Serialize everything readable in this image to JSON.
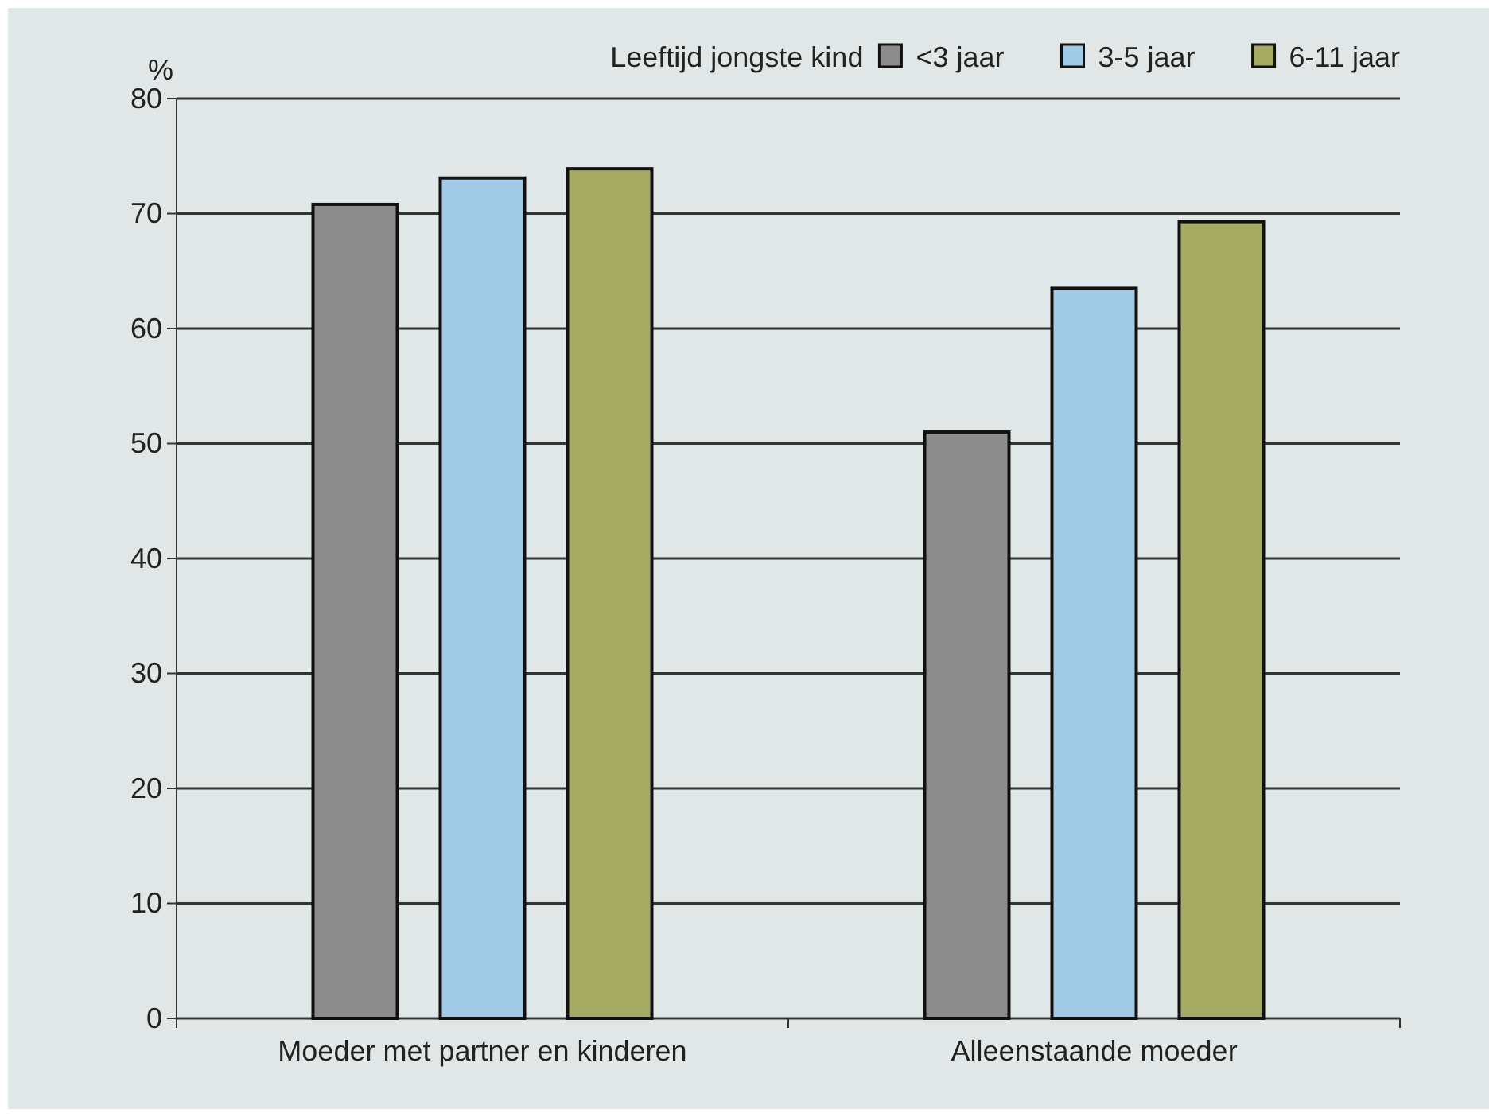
{
  "chart_data": {
    "type": "bar",
    "ylabel": "%",
    "legend_title": "Leeftijd jongste kind",
    "categories": [
      "Moeder met partner en kinderen",
      "Alleenstaande moeder"
    ],
    "series": [
      {
        "name": "<3 jaar",
        "color": "#8c8c8c",
        "values": [
          70.8,
          51.0
        ]
      },
      {
        "name": "3-5 jaar",
        "color": "#a0cbe6",
        "values": [
          73.1,
          63.5
        ]
      },
      {
        "name": "6-11 jaar",
        "color": "#a6ab64",
        "values": [
          73.9,
          69.3
        ]
      }
    ],
    "ylim": [
      0,
      80
    ],
    "yticks": [
      0,
      10,
      20,
      30,
      40,
      50,
      60,
      70,
      80
    ],
    "grid": "y",
    "legend": "top right"
  }
}
